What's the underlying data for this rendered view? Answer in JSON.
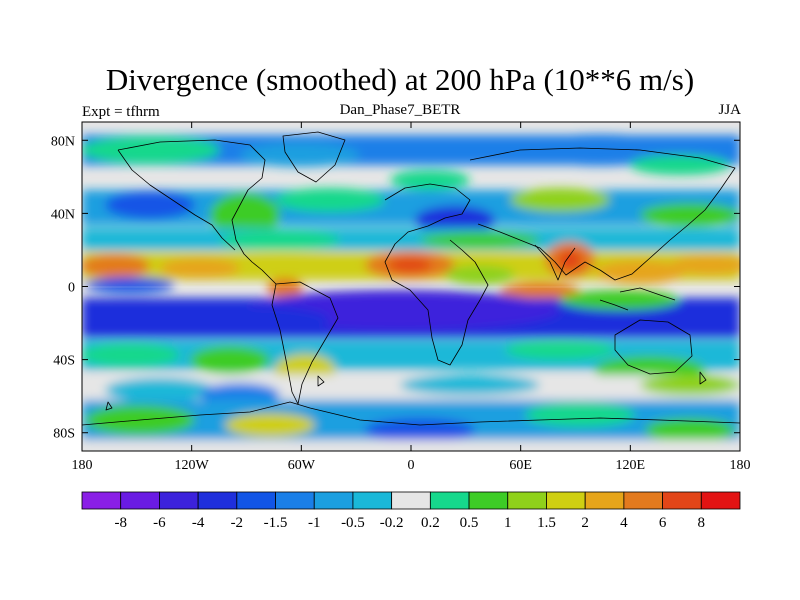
{
  "chart_data": {
    "type": "heatmap",
    "title": "Divergence (smoothed) at 200 hPa (10**6 m/s)",
    "subtitle_left": "Expt = tfhrm",
    "subtitle_center": "Dan_Phase7_BETR",
    "subtitle_right": "JJA",
    "x_ticks": [
      "180",
      "120W",
      "60W",
      "0",
      "60E",
      "120E",
      "180"
    ],
    "y_ticks": [
      "80N",
      "40N",
      "0",
      "40S",
      "80S"
    ],
    "xlim": [
      -180,
      180
    ],
    "ylim": [
      -90,
      90
    ],
    "colorbar_labels": [
      "-8",
      "-6",
      "-4",
      "-2",
      "-1.5",
      "-1",
      "-0.5",
      "-0.2",
      "0.2",
      "0.5",
      "1",
      "1.5",
      "2",
      "4",
      "6",
      "8"
    ],
    "colorbar_colors": [
      "#8a1fe6",
      "#6a1be3",
      "#3c22dc",
      "#1f2fdc",
      "#1255e6",
      "#1a7fe8",
      "#1b9fe0",
      "#1ab8d8",
      "#e6e6e6",
      "#16d88c",
      "#3dcc26",
      "#8fd11a",
      "#cfcf12",
      "#e6a51a",
      "#e37a1e",
      "#e24518",
      "#e31313"
    ]
  }
}
